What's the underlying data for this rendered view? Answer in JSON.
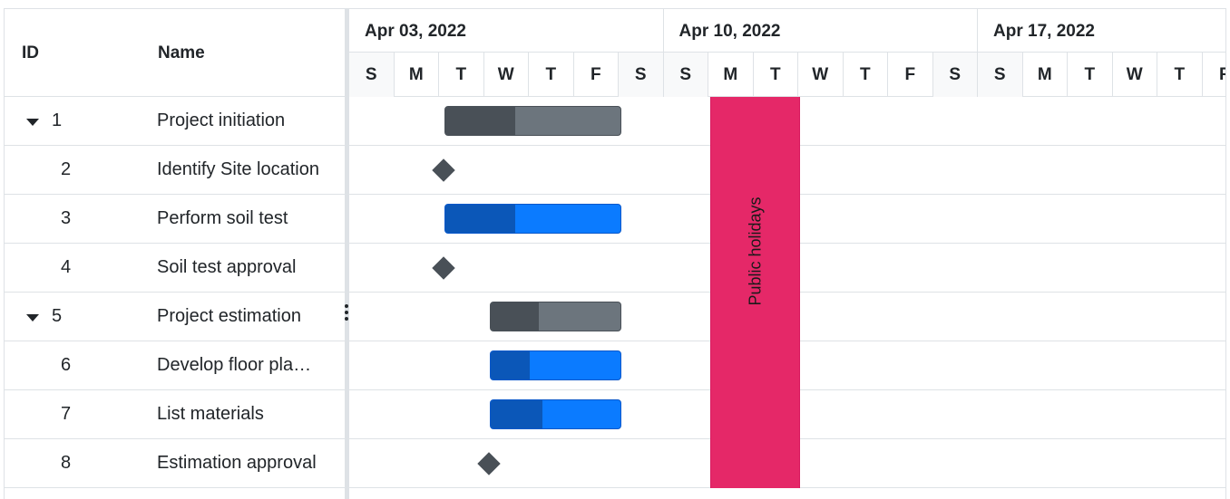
{
  "grid": {
    "columns": {
      "id": "ID",
      "name": "Name"
    },
    "rows": [
      {
        "id": "1",
        "name": "Project initiation",
        "expandable": true,
        "kind": "parent",
        "progress": 0.4
      },
      {
        "id": "2",
        "name": "Identify Site location",
        "expandable": false,
        "kind": "milestone"
      },
      {
        "id": "3",
        "name": "Perform soil test",
        "expandable": false,
        "kind": "child",
        "progress": 0.4
      },
      {
        "id": "4",
        "name": "Soil test approval",
        "expandable": false,
        "kind": "milestone"
      },
      {
        "id": "5",
        "name": "Project estimation",
        "expandable": true,
        "kind": "parent",
        "progress": 0.37
      },
      {
        "id": "6",
        "name": "Develop floor pla…",
        "expandable": false,
        "kind": "child",
        "progress": 0.3
      },
      {
        "id": "7",
        "name": "List materials",
        "expandable": false,
        "kind": "child",
        "progress": 0.4
      },
      {
        "id": "8",
        "name": "Estimation approval",
        "expandable": false,
        "kind": "milestone"
      }
    ]
  },
  "timeline": {
    "weeks": [
      "Apr 03, 2022",
      "Apr 10, 2022",
      "Apr 17, 2022"
    ],
    "days": [
      "S",
      "M",
      "T",
      "W",
      "T",
      "F",
      "S",
      "S",
      "M",
      "T",
      "W",
      "T",
      "F",
      "S",
      "S",
      "M",
      "T",
      "W",
      "T",
      "F"
    ],
    "holiday_label": "Public holidays"
  },
  "colors": {
    "parent_bar": "#6c757d",
    "parent_progress": "#495057",
    "child_bar": "#0b7bff",
    "child_progress": "#0b57b8",
    "milestone": "#495057",
    "holiday": "#e52868"
  }
}
